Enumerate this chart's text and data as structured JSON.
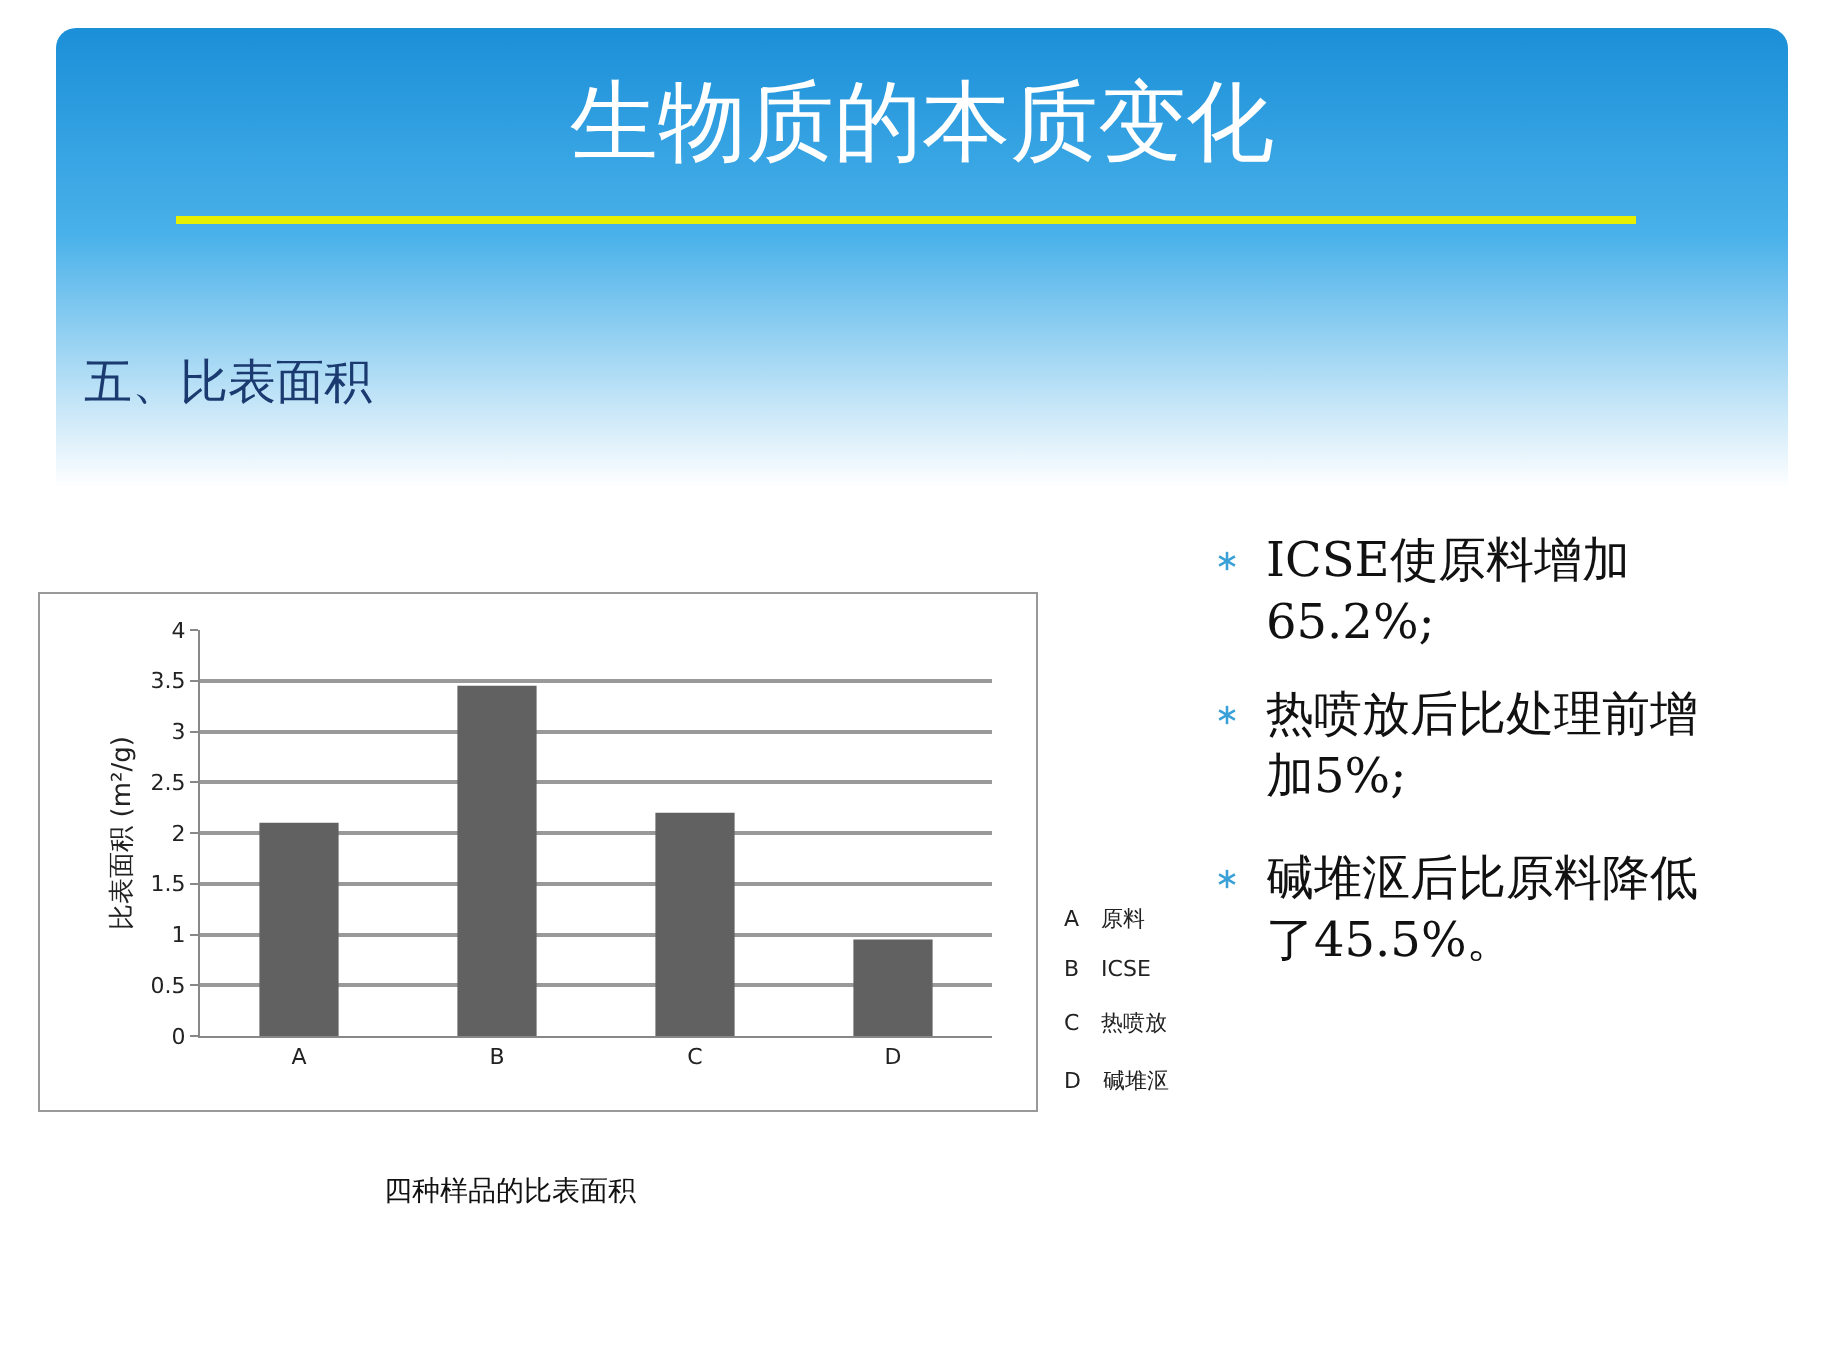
{
  "chart_data": {
    "type": "bar",
    "title": "生物质的本质变化",
    "subtitle": "五、比表面积",
    "ylabel": "比表面积 (m²/g)",
    "categories": [
      "A",
      "B",
      "C",
      "D"
    ],
    "values": [
      2.1,
      3.45,
      2.2,
      0.95
    ],
    "color": "#616161",
    "ylim": [
      0,
      4
    ],
    "yticks": [
      0,
      0.5,
      1,
      1.5,
      2,
      2.5,
      3,
      3.5,
      4
    ],
    "grid": "y",
    "legend": false,
    "annotations": [
      "A　原料",
      "B　ICSE",
      "C　热喷放",
      "D　碱堆沤",
      "四种样品的比表面积",
      "ICSE使原料增加65.2%;",
      "热喷放后比处理前增加5%;",
      "碱堆沤后比原料降低了45.5%。"
    ]
  }
}
